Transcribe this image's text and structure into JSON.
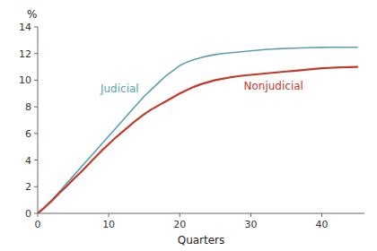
{
  "chart_data": {
    "type": "line",
    "xlabel": "Quarters",
    "ylabel": "%",
    "x": [
      0,
      1,
      2,
      3,
      4,
      5,
      6,
      7,
      8,
      9,
      10,
      11,
      12,
      13,
      14,
      15,
      16,
      17,
      18,
      19,
      20,
      21,
      22,
      23,
      24,
      25,
      26,
      27,
      28,
      29,
      30,
      31,
      32,
      33,
      34,
      35,
      36,
      37,
      38,
      39,
      40,
      41,
      42,
      43,
      44,
      45
    ],
    "series": [
      {
        "name": "Judicial",
        "color": "#5b9fad",
        "values": [
          0.0,
          0.5,
          1.0,
          1.6,
          2.2,
          2.8,
          3.4,
          4.0,
          4.6,
          5.2,
          5.8,
          6.4,
          7.0,
          7.6,
          8.2,
          8.8,
          9.3,
          9.8,
          10.3,
          10.7,
          11.1,
          11.35,
          11.55,
          11.7,
          11.82,
          11.92,
          12.0,
          12.05,
          12.1,
          12.15,
          12.2,
          12.25,
          12.3,
          12.33,
          12.36,
          12.38,
          12.4,
          12.42,
          12.44,
          12.45,
          12.46,
          12.47,
          12.47,
          12.47,
          12.47,
          12.47
        ]
      },
      {
        "name": "Nonjudicial",
        "color": "#c0392b",
        "values": [
          0.0,
          0.45,
          0.95,
          1.5,
          2.0,
          2.55,
          3.05,
          3.6,
          4.15,
          4.7,
          5.2,
          5.7,
          6.15,
          6.6,
          7.05,
          7.45,
          7.8,
          8.1,
          8.4,
          8.7,
          9.0,
          9.25,
          9.5,
          9.7,
          9.85,
          10.0,
          10.1,
          10.2,
          10.28,
          10.35,
          10.4,
          10.45,
          10.5,
          10.55,
          10.6,
          10.65,
          10.7,
          10.75,
          10.8,
          10.85,
          10.9,
          10.92,
          10.95,
          10.97,
          10.98,
          11.0
        ]
      }
    ],
    "xlim": [
      0,
      46
    ],
    "ylim": [
      0,
      14
    ],
    "xticks": [
      0,
      10,
      20,
      30,
      40
    ],
    "yticks": [
      0,
      2,
      4,
      6,
      8,
      10,
      12,
      14
    ],
    "grid": false
  }
}
